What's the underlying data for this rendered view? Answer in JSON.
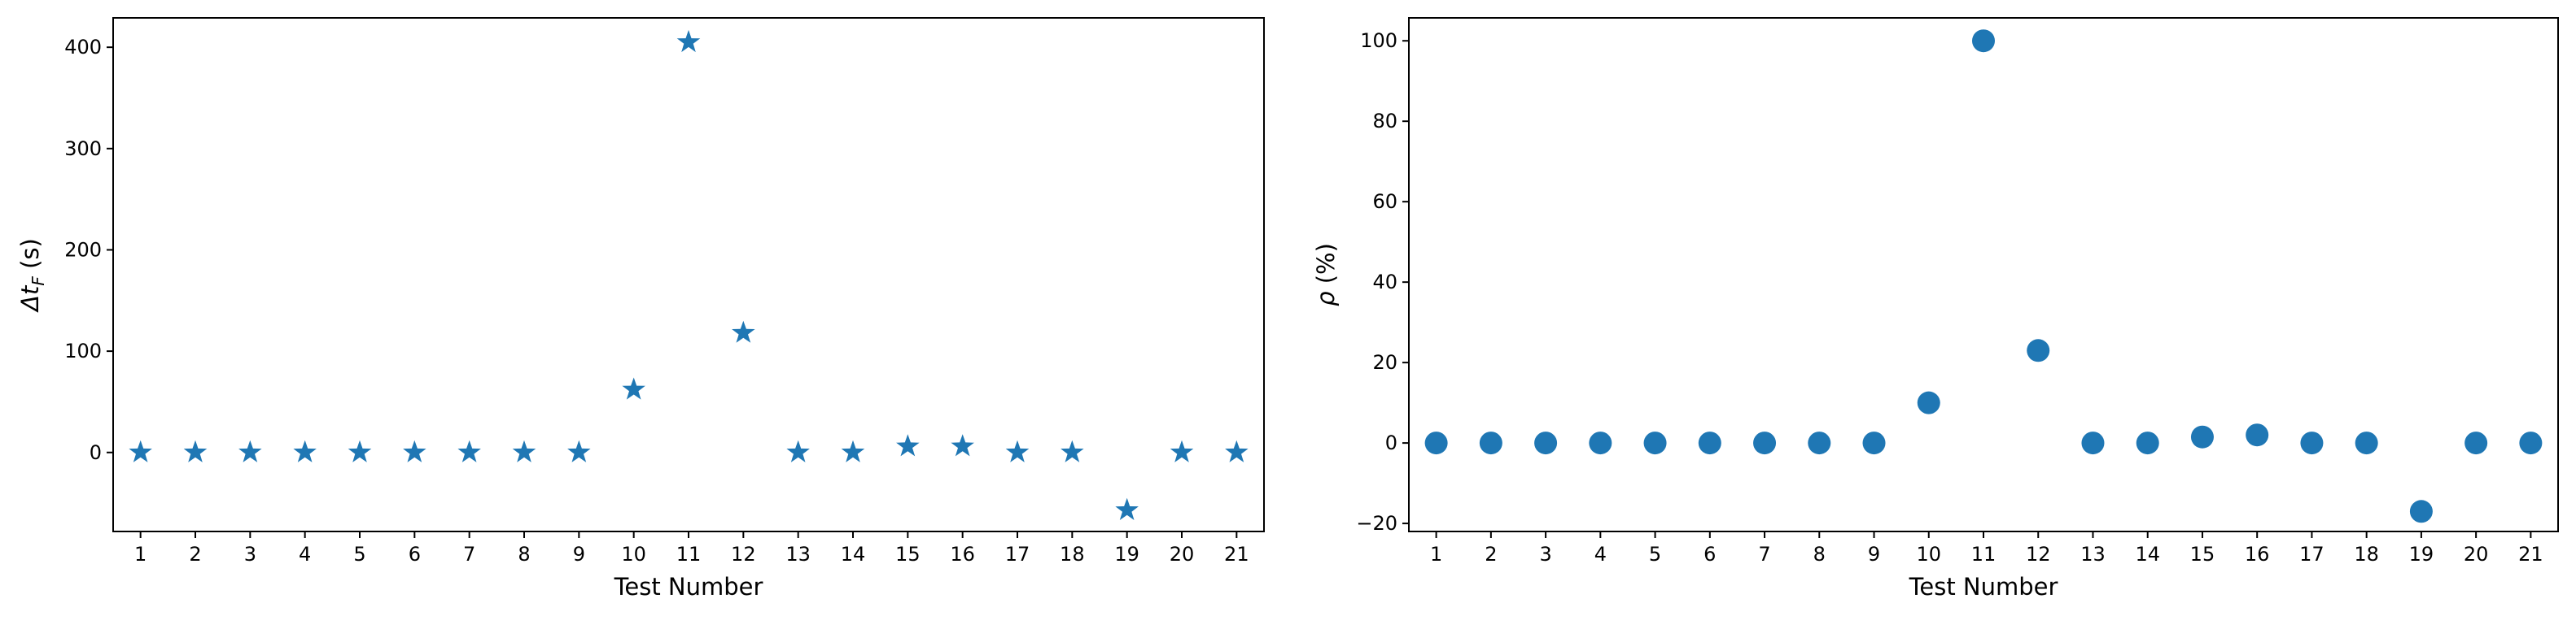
{
  "chart_data": [
    {
      "type": "scatter",
      "x_label": "Test Number",
      "y_label": "Δt",
      "y_label_sub": "F",
      "y_label_unit": "(s)",
      "x": [
        1,
        2,
        3,
        4,
        5,
        6,
        7,
        8,
        9,
        10,
        11,
        12,
        13,
        14,
        15,
        16,
        17,
        18,
        19,
        20,
        21
      ],
      "series": [
        {
          "color": "#1f77b4",
          "marker": "star",
          "values": [
            0,
            0,
            0,
            0,
            0,
            0,
            0,
            0,
            0,
            62,
            405,
            118,
            0,
            0,
            6,
            6,
            0,
            0,
            -57,
            0,
            0
          ]
        }
      ],
      "xlim": [
        0.5,
        21.5
      ],
      "xticks": [
        1,
        2,
        3,
        4,
        5,
        6,
        7,
        8,
        9,
        10,
        11,
        12,
        13,
        14,
        15,
        16,
        17,
        18,
        19,
        20,
        21
      ],
      "ylim": [
        -78,
        429
      ],
      "yticks": [
        0,
        100,
        200,
        300,
        400
      ]
    },
    {
      "type": "scatter",
      "x_label": "Test Number",
      "y_label": "ρ",
      "y_label_unit": "(%)",
      "x": [
        1,
        2,
        3,
        4,
        5,
        6,
        7,
        8,
        9,
        10,
        11,
        12,
        13,
        14,
        15,
        16,
        17,
        18,
        19,
        20,
        21
      ],
      "series": [
        {
          "color": "#1f77b4",
          "marker": "circle",
          "values": [
            0,
            0,
            0,
            0,
            0,
            0,
            0,
            0,
            0,
            10,
            100,
            23,
            0,
            0,
            1.5,
            2,
            0,
            0,
            -17,
            0,
            0
          ]
        }
      ],
      "xlim": [
        0.5,
        21.5
      ],
      "xticks": [
        1,
        2,
        3,
        4,
        5,
        6,
        7,
        8,
        9,
        10,
        11,
        12,
        13,
        14,
        15,
        16,
        17,
        18,
        19,
        20,
        21
      ],
      "ylim": [
        -22,
        105.7
      ],
      "yticks": [
        {
          "value": -20,
          "label": "−20"
        },
        0,
        20,
        40,
        60,
        80,
        100
      ]
    }
  ]
}
